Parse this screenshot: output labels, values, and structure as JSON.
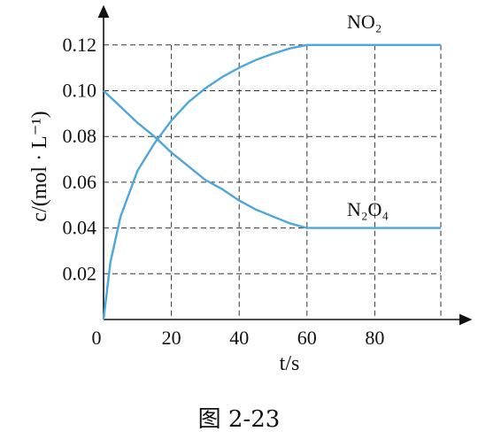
{
  "chart_data": {
    "type": "line",
    "x_axis_label": "t/s",
    "y_axis_label": "c/(mol · L⁻¹)",
    "xlim": [
      0,
      100
    ],
    "ylim": [
      0,
      0.13
    ],
    "x_ticks": [
      0,
      20,
      40,
      60,
      80
    ],
    "x_tick_labels": [
      "0",
      "20",
      "40",
      "60",
      "80"
    ],
    "y_ticks": [
      0.02,
      0.04,
      0.06,
      0.08,
      0.1,
      0.12
    ],
    "y_tick_labels": [
      "0.02",
      "0.04",
      "0.06",
      "0.08",
      "0.10",
      "0.12"
    ],
    "grid": true,
    "series": [
      {
        "name": "NO₂",
        "color": "#4da6dc",
        "points": [
          [
            0,
            0.0
          ],
          [
            2,
            0.025
          ],
          [
            5,
            0.045
          ],
          [
            10,
            0.065
          ],
          [
            15,
            0.077
          ],
          [
            20,
            0.087
          ],
          [
            25,
            0.095
          ],
          [
            30,
            0.101
          ],
          [
            35,
            0.106
          ],
          [
            40,
            0.11
          ],
          [
            45,
            0.1135
          ],
          [
            50,
            0.1162
          ],
          [
            55,
            0.1185
          ],
          [
            60,
            0.12
          ],
          [
            100,
            0.12
          ]
        ]
      },
      {
        "name": "N₂O₄",
        "color": "#4da6dc",
        "points": [
          [
            0,
            0.1
          ],
          [
            5,
            0.093
          ],
          [
            10,
            0.086
          ],
          [
            15,
            0.08
          ],
          [
            20,
            0.073
          ],
          [
            25,
            0.067
          ],
          [
            30,
            0.061
          ],
          [
            35,
            0.057
          ],
          [
            40,
            0.052
          ],
          [
            45,
            0.048
          ],
          [
            50,
            0.045
          ],
          [
            55,
            0.042
          ],
          [
            60,
            0.04
          ],
          [
            100,
            0.04
          ]
        ]
      }
    ]
  },
  "caption": "图 2-23"
}
